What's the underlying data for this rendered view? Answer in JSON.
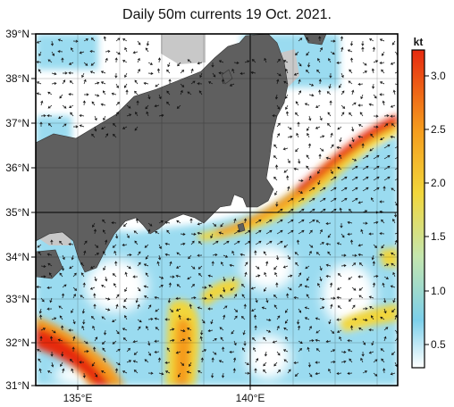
{
  "title": "Daily 50m currents 19 Oct. 2021.",
  "lat_labels": [
    "39°N",
    "38°N",
    "37°N",
    "36°N",
    "35°N",
    "34°N",
    "33°N",
    "32°N",
    "31°N"
  ],
  "lon_labels": [
    "135°E",
    "140°E"
  ],
  "colorbar": {
    "unit": "kt",
    "ticks": [
      "3.0",
      "2.5",
      "2.0",
      "1.5",
      "1.0",
      "0.5"
    ],
    "range": [
      0.3,
      3.2
    ],
    "stops": [
      "#ffffff",
      "#7ccfea",
      "#c4e6ae",
      "#f2d63b",
      "#f59b1d",
      "#e62a10"
    ]
  },
  "colors": {
    "land": "#5f5f5f",
    "shelf": "#c8c8c8",
    "ocean_low": "#ffffff",
    "ocean_mid": "#9adbf0",
    "current_high": "#e83010",
    "frame": "#000000"
  }
}
